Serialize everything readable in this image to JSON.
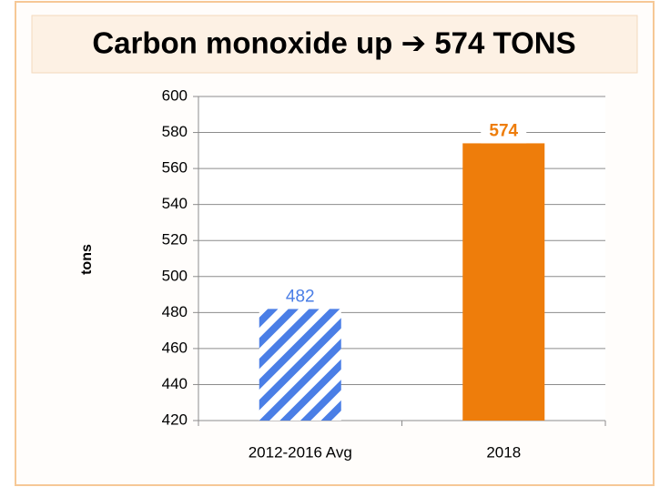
{
  "chart_data": {
    "type": "bar",
    "title": "Carbon monoxide up ➔ 574 TONS",
    "y_label": "tons",
    "categories": [
      "2012-2016 Avg",
      "2018"
    ],
    "values": [
      482,
      574
    ],
    "colors": [
      "#4a7ee6",
      "#ee7d0b"
    ],
    "patterns": [
      "stripes",
      "solid"
    ],
    "ylim": [
      420,
      600
    ],
    "yticks": [
      420,
      440,
      460,
      480,
      500,
      520,
      540,
      560,
      580,
      600
    ],
    "grid": true
  }
}
